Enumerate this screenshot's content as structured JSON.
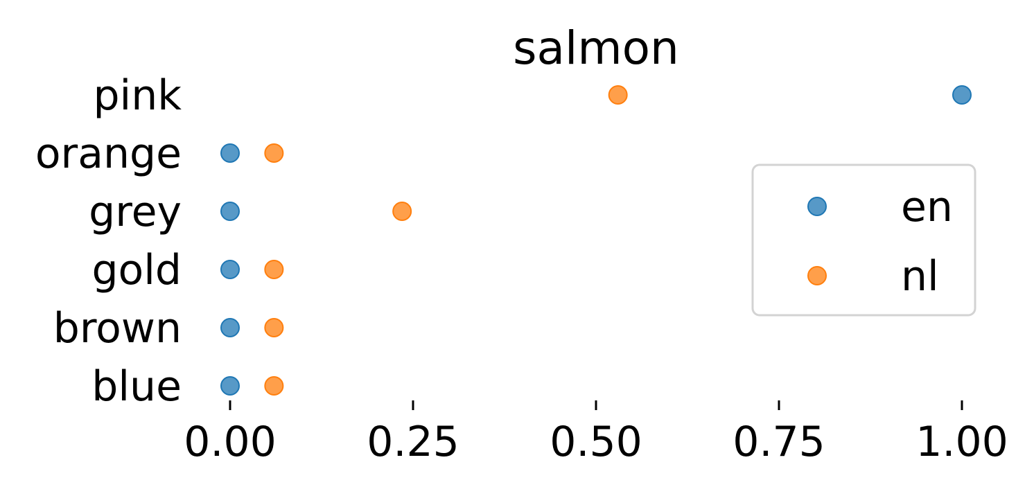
{
  "chart_data": {
    "type": "scatter",
    "title": "salmon",
    "categories": [
      "blue",
      "brown",
      "gold",
      "grey",
      "orange",
      "pink"
    ],
    "series": [
      {
        "name": "en",
        "values": [
          0.0,
          0.0,
          0.0,
          0.0,
          0.0,
          1.0
        ],
        "color": "#1f77b4"
      },
      {
        "name": "nl",
        "values": [
          0.06,
          0.06,
          0.06,
          0.235,
          0.06,
          0.53
        ],
        "color": "#ff7f0e"
      }
    ],
    "xticks": [
      "0.00",
      "0.25",
      "0.50",
      "0.75",
      "1.00"
    ],
    "xtick_values": [
      0.0,
      0.25,
      0.5,
      0.75,
      1.0
    ],
    "xlim": [
      -0.04,
      1.04
    ],
    "legend": "center-right",
    "grid": false
  }
}
